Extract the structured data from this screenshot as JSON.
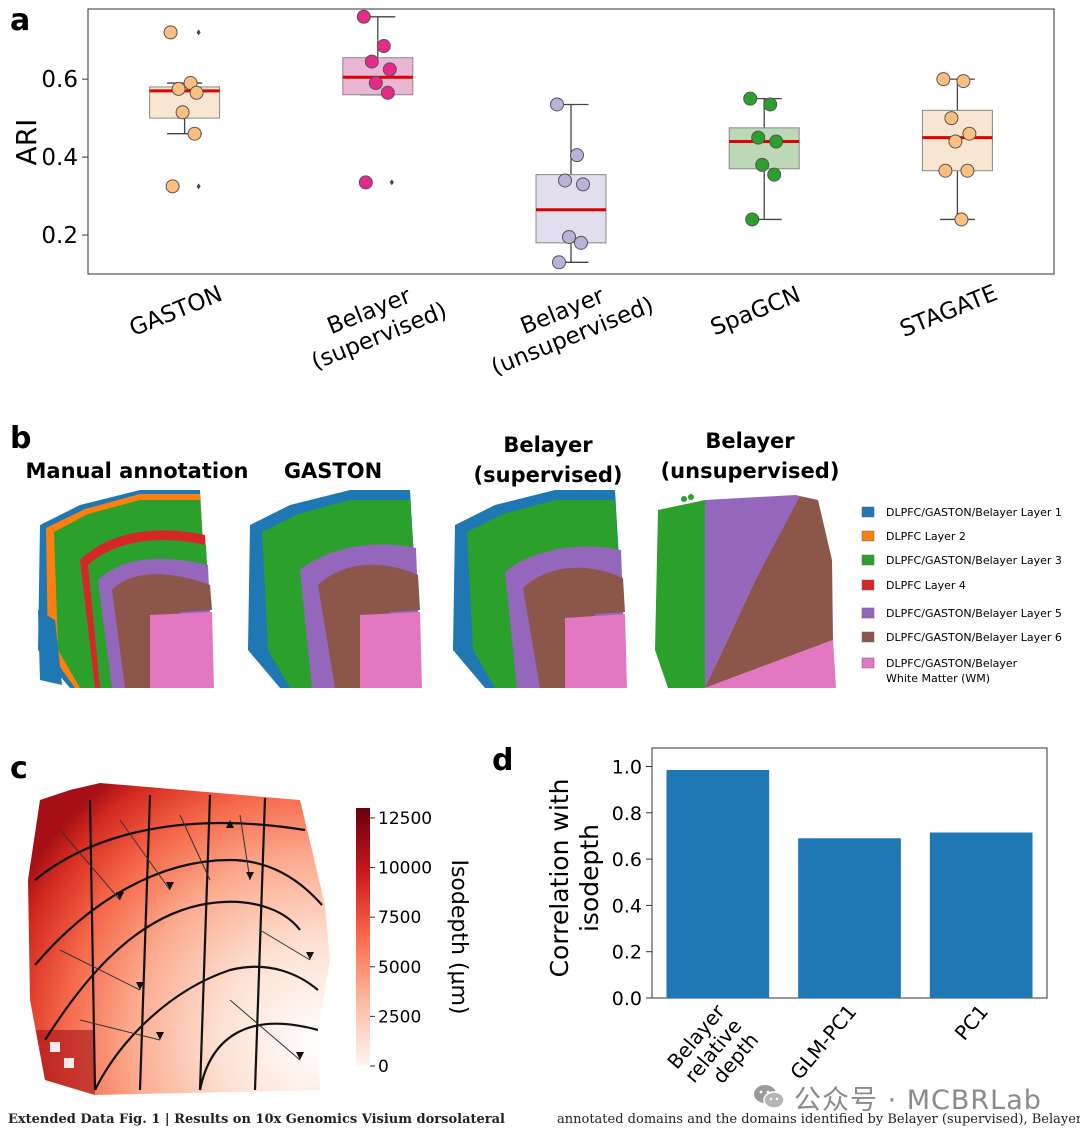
{
  "panels": {
    "a": "a",
    "b": "b",
    "c": "c",
    "d": "d"
  },
  "panel_b": {
    "titles": [
      "Manual annotation",
      "GASTON",
      "Belayer\n(supervised)",
      "Belayer\n(unsupervised)"
    ],
    "legend": [
      {
        "label": "DLPFC/GASTON/Belayer Layer 1",
        "color": "#1f77b4"
      },
      {
        "label": "DLPFC Layer 2",
        "color": "#ff7f0e"
      },
      {
        "label": "DLPFC/GASTON/Belayer Layer 3",
        "color": "#2ca02c"
      },
      {
        "label": "DLPFC Layer 4",
        "color": "#d62728"
      },
      {
        "label": "DLPFC/GASTON/Belayer Layer 5",
        "color": "#9467bd"
      },
      {
        "label": "DLPFC/GASTON/Belayer Layer 6",
        "color": "#8c564b"
      },
      {
        "label": "DLPFC/GASTON/Belayer\nWhite Matter (WM)",
        "color": "#e377c2"
      }
    ]
  },
  "panel_c": {
    "colorbar_label": "Isodepth (μm)",
    "colorbar_ticks": [
      "12500",
      "10000",
      "7500",
      "5000",
      "2500",
      "0"
    ],
    "colorbar_range": [
      0,
      13000
    ]
  },
  "chart_data": [
    {
      "type": "box",
      "panel": "a",
      "ylabel": "ARI",
      "ylim": [
        0.1,
        0.78
      ],
      "yticks": [
        0.2,
        0.4,
        0.6
      ],
      "categories": [
        "GASTON",
        "Belayer\n(supervised)",
        "Belayer\n(unsupervised)",
        "SpaGCN",
        "STAGATE"
      ],
      "series": [
        {
          "name": "GASTON",
          "color": "#fdbf80",
          "box_fill": "#f9e6d2",
          "q1": 0.5,
          "median": 0.57,
          "q3": 0.58,
          "whisker_low": 0.46,
          "whisker_high": 0.59,
          "outliers": [
            0.72,
            0.325
          ],
          "points": [
            0.72,
            0.59,
            0.575,
            0.565,
            0.515,
            0.46,
            0.325
          ]
        },
        {
          "name": "Belayer (supervised)",
          "color": "#e7298a",
          "box_fill": "#ebb6d3",
          "q1": 0.56,
          "median": 0.605,
          "q3": 0.655,
          "whisker_low": 0.56,
          "whisker_high": 0.76,
          "outliers": [
            0.335
          ],
          "points": [
            0.76,
            0.685,
            0.645,
            0.625,
            0.59,
            0.565,
            0.335
          ]
        },
        {
          "name": "Belayer (unsupervised)",
          "color": "#bcb1d8",
          "box_fill": "#e2deed",
          "q1": 0.18,
          "median": 0.265,
          "q3": 0.355,
          "whisker_low": 0.13,
          "whisker_high": 0.535,
          "outliers": [],
          "points": [
            0.535,
            0.405,
            0.34,
            0.33,
            0.195,
            0.18,
            0.13
          ]
        },
        {
          "name": "SpaGCN",
          "color": "#2ca02c",
          "box_fill": "#bcd8b6",
          "q1": 0.37,
          "median": 0.44,
          "q3": 0.475,
          "whisker_low": 0.24,
          "whisker_high": 0.55,
          "outliers": [],
          "points": [
            0.55,
            0.535,
            0.45,
            0.44,
            0.38,
            0.355,
            0.24
          ]
        },
        {
          "name": "STAGATE",
          "color": "#fdbf80",
          "box_fill": "#f9e6d2",
          "q1": 0.365,
          "median": 0.45,
          "q3": 0.52,
          "whisker_low": 0.24,
          "whisker_high": 0.6,
          "outliers": [],
          "points": [
            0.6,
            0.595,
            0.5,
            0.46,
            0.44,
            0.365,
            0.365,
            0.24
          ]
        }
      ]
    },
    {
      "type": "bar",
      "panel": "d",
      "ylabel": "Correlation with\nisodepth",
      "categories": [
        "Belayer\nrelative\ndepth",
        "GLM-PC1",
        "PC1"
      ],
      "values": [
        0.985,
        0.69,
        0.715
      ],
      "ylim": [
        0,
        1.08
      ],
      "yticks": [
        0.0,
        0.2,
        0.4,
        0.6,
        0.8,
        1.0
      ],
      "color": "#1f77b4"
    }
  ],
  "caption": {
    "left_bold": "Extended Data Fig. 1 | Results on 10x Genomics Visium dorsolateral",
    "right": "annotated domains and the domains identified by Belayer (supervised), Belayer"
  },
  "watermark": {
    "text": "公众号 · MCBRLab",
    "icon": "wechat-icon"
  }
}
